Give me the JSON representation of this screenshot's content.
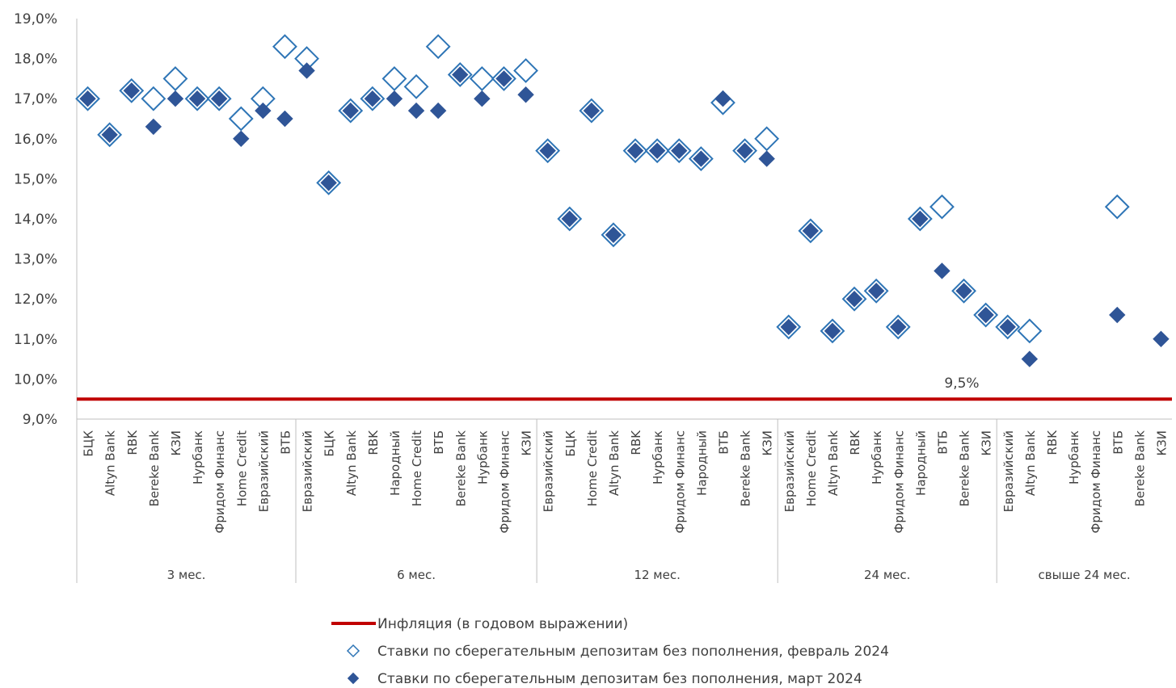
{
  "chart_data": {
    "type": "scatter",
    "title": "",
    "xlabel": "",
    "ylabel": "",
    "ylim": [
      9,
      19
    ],
    "ytick_step": 1,
    "y_tick_format": "percent_comma_1dp",
    "grid": false,
    "legend_position": "bottom",
    "groups": [
      {
        "label": "3 мес.",
        "count": 10
      },
      {
        "label": "6 мес.",
        "count": 11
      },
      {
        "label": "12 мес.",
        "count": 11
      },
      {
        "label": "24 мес.",
        "count": 10
      },
      {
        "label": "свыше 24 мес.",
        "count": 8
      }
    ],
    "categories": [
      "БЦК",
      "Altyn Bank",
      "RBK",
      "Bereke Bank",
      "КЗИ",
      "Нурбанк",
      "Фридом Финанс",
      "Home Credit",
      "Евразийский",
      "ВТБ",
      "Евразийский",
      "БЦК",
      "Altyn Bank",
      "RBK",
      "Народный",
      "Home Credit",
      "ВТБ",
      "Bereke Bank",
      "Нурбанк",
      "Фридом Финанс",
      "КЗИ",
      "Евразийский",
      "БЦК",
      "Home Credit",
      "Altyn Bank",
      "RBK",
      "Нурбанк",
      "Фридом Финанс",
      "Народный",
      "ВТБ",
      "Bereke Bank",
      "КЗИ",
      "Евразийский",
      "Home Credit",
      "Altyn Bank",
      "RBK",
      "Нурбанк",
      "Фридом Финанс",
      "Народный",
      "ВТБ",
      "Bereke Bank",
      "КЗИ",
      "Евразийский",
      "Altyn Bank",
      "RBK",
      "Нурбанк",
      "Фридом Финанс",
      "ВТБ",
      "Bereke Bank",
      "КЗИ"
    ],
    "reference_line": {
      "name": "Инфляция (в годовом выражении)",
      "value": 9.5,
      "label": "9,5%",
      "color": "#C00000"
    },
    "series": [
      {
        "name": "Ставки по сберегательным депозитам без пополнения, февраль 2024",
        "marker": "diamond-open",
        "color": "#2E75B6",
        "values": [
          17.0,
          16.1,
          17.2,
          17.0,
          17.5,
          17.0,
          17.0,
          16.5,
          17.0,
          18.3,
          18.0,
          14.9,
          16.7,
          17.0,
          17.5,
          17.3,
          18.3,
          17.6,
          17.5,
          17.5,
          17.7,
          15.7,
          14.0,
          16.7,
          13.6,
          15.7,
          15.7,
          15.7,
          15.5,
          16.9,
          15.7,
          16.0,
          11.3,
          13.7,
          11.2,
          12.0,
          12.2,
          11.3,
          14.0,
          14.3,
          12.2,
          11.6,
          11.3,
          11.2,
          null,
          null,
          null,
          14.3,
          null,
          null
        ]
      },
      {
        "name": "Ставки по сберегательным депозитам без пополнения, март 2024",
        "marker": "diamond-filled",
        "color": "#2F5597",
        "values": [
          17.0,
          16.1,
          17.2,
          16.3,
          17.0,
          17.0,
          17.0,
          16.0,
          16.7,
          16.5,
          17.7,
          14.9,
          16.7,
          17.0,
          17.0,
          16.7,
          16.7,
          17.6,
          17.0,
          17.5,
          17.1,
          15.7,
          14.0,
          16.7,
          13.6,
          15.7,
          15.7,
          15.7,
          15.5,
          17.0,
          15.7,
          15.5,
          11.3,
          13.7,
          11.2,
          12.0,
          12.2,
          11.3,
          14.0,
          12.7,
          12.2,
          11.6,
          11.3,
          10.5,
          null,
          null,
          null,
          11.6,
          null,
          11.0
        ]
      }
    ]
  }
}
